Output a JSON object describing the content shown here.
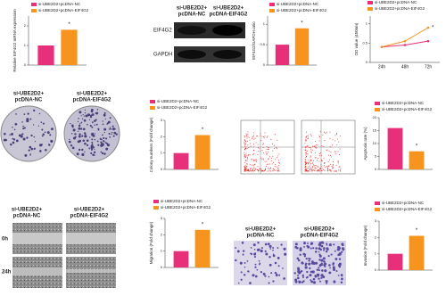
{
  "chart_data": [
    {
      "type": "bar",
      "ylabel": "Relative EIF4G2 mRNA expression",
      "categories": [
        null
      ],
      "series": [
        {
          "name": "si-UBE2D2+pcDNA-NC",
          "color": "#e8307a",
          "values": [
            1.0
          ]
        },
        {
          "name": "si-UBE2D2+pcDNA-EIF4G2",
          "color": "#f7941d",
          "values": [
            1.8
          ]
        }
      ],
      "ylim": [
        0,
        2.5
      ],
      "yticks": [
        0,
        1,
        2
      ],
      "annotation": "*"
    },
    {
      "type": "bar",
      "ylabel": "EIF4G2/GAPDH ratio",
      "categories": [
        null
      ],
      "series": [
        {
          "name": "si-UBE2D2+pcDNA-NC",
          "color": "#e8307a",
          "values": [
            0.5
          ]
        },
        {
          "name": "si-UBE2D2+pcDNA-EIF4G2",
          "color": "#f7941d",
          "values": [
            0.9
          ]
        }
      ],
      "ylim": [
        0,
        1.2
      ],
      "yticks": [
        0,
        0.5,
        1
      ],
      "annotation": "*"
    },
    {
      "type": "line",
      "ylabel": "OD value (450nm)",
      "categories": [
        "24h",
        "48h",
        "72h"
      ],
      "series": [
        {
          "name": "si-UBE2D2+pcDNA-NC",
          "color": "#e8307a",
          "values": [
            0.4,
            0.45,
            0.55
          ]
        },
        {
          "name": "si-UBE2D2+pcDNA-EIF4G2",
          "color": "#f7941d",
          "values": [
            0.4,
            0.55,
            0.9
          ]
        }
      ],
      "ylim": [
        0,
        1.2
      ],
      "yticks": [
        0,
        0.5,
        1
      ],
      "annotation": "*"
    },
    {
      "type": "bar",
      "ylabel": "Colony numbers (Fold change)",
      "categories": [
        null
      ],
      "series": [
        {
          "name": "si-UBE2D2+pcDNA-NC",
          "color": "#e8307a",
          "values": [
            1.0
          ]
        },
        {
          "name": "si-UBE2D2+pcDNA-EIF4G2",
          "color": "#f7941d",
          "values": [
            2.1
          ]
        }
      ],
      "ylim": [
        0,
        3
      ],
      "yticks": [
        0,
        1,
        2,
        3
      ],
      "annotation": "*"
    },
    {
      "type": "bar",
      "ylabel": "Apoptosis rate (%)",
      "categories": [
        null
      ],
      "series": [
        {
          "name": "si-UBE2D2+pcDNA-NC",
          "color": "#e8307a",
          "values": [
            16
          ]
        },
        {
          "name": "si-UBE2D2+pcDNA-EIF4G2",
          "color": "#f7941d",
          "values": [
            7
          ]
        }
      ],
      "ylim": [
        0,
        20
      ],
      "yticks": [
        0,
        5,
        10,
        15,
        20
      ],
      "annotation": "*"
    },
    {
      "type": "bar",
      "ylabel": "Migration (Fold change)",
      "categories": [
        null
      ],
      "series": [
        {
          "name": "si-UBE2D2+pcDNA-NC",
          "color": "#e8307a",
          "values": [
            1.0
          ]
        },
        {
          "name": "si-UBE2D2+pcDNA-EIF4G2",
          "color": "#f7941d",
          "values": [
            2.3
          ]
        }
      ],
      "ylim": [
        0,
        3
      ],
      "yticks": [
        0,
        1,
        2,
        3
      ],
      "annotation": "*"
    },
    {
      "type": "bar",
      "ylabel": "Invasion (Fold change)",
      "categories": [
        null
      ],
      "series": [
        {
          "name": "si-UBE2D2+pcDNA-NC",
          "color": "#e8307a",
          "values": [
            1.0
          ]
        },
        {
          "name": "si-UBE2D2+pcDNA-EIF4G2",
          "color": "#f7941d",
          "values": [
            2.1
          ]
        }
      ],
      "ylim": [
        0,
        3
      ],
      "yticks": [
        0,
        1,
        2,
        3
      ],
      "annotation": "*"
    }
  ],
  "blot": {
    "columns": [
      [
        "si-UBE2D2+",
        "pcDNA-NC"
      ],
      [
        "si-UBE2D2+",
        "pcDNA-EIF4G2"
      ]
    ],
    "rows": [
      "EIF4G2",
      "GAPDH"
    ]
  },
  "colony": {
    "columns": [
      [
        "si-UBE2D2+",
        "pcDNA-NC"
      ],
      [
        "si-UBE2D2+",
        "pcDNA-EIF4G2"
      ]
    ]
  },
  "wound": {
    "columns": [
      [
        "si-UBE2D2+",
        "pcDNA-NC"
      ],
      [
        "si-UBE2D2+",
        "pcDNA-EIF4G2"
      ]
    ],
    "rows": [
      "0h",
      "24h"
    ]
  },
  "transwell": {
    "columns": [
      [
        "si-UBE2D2+",
        "pcDNA-NC"
      ],
      [
        "si-UBE2D2+",
        "pcDNA-EIF4G2"
      ]
    ]
  }
}
